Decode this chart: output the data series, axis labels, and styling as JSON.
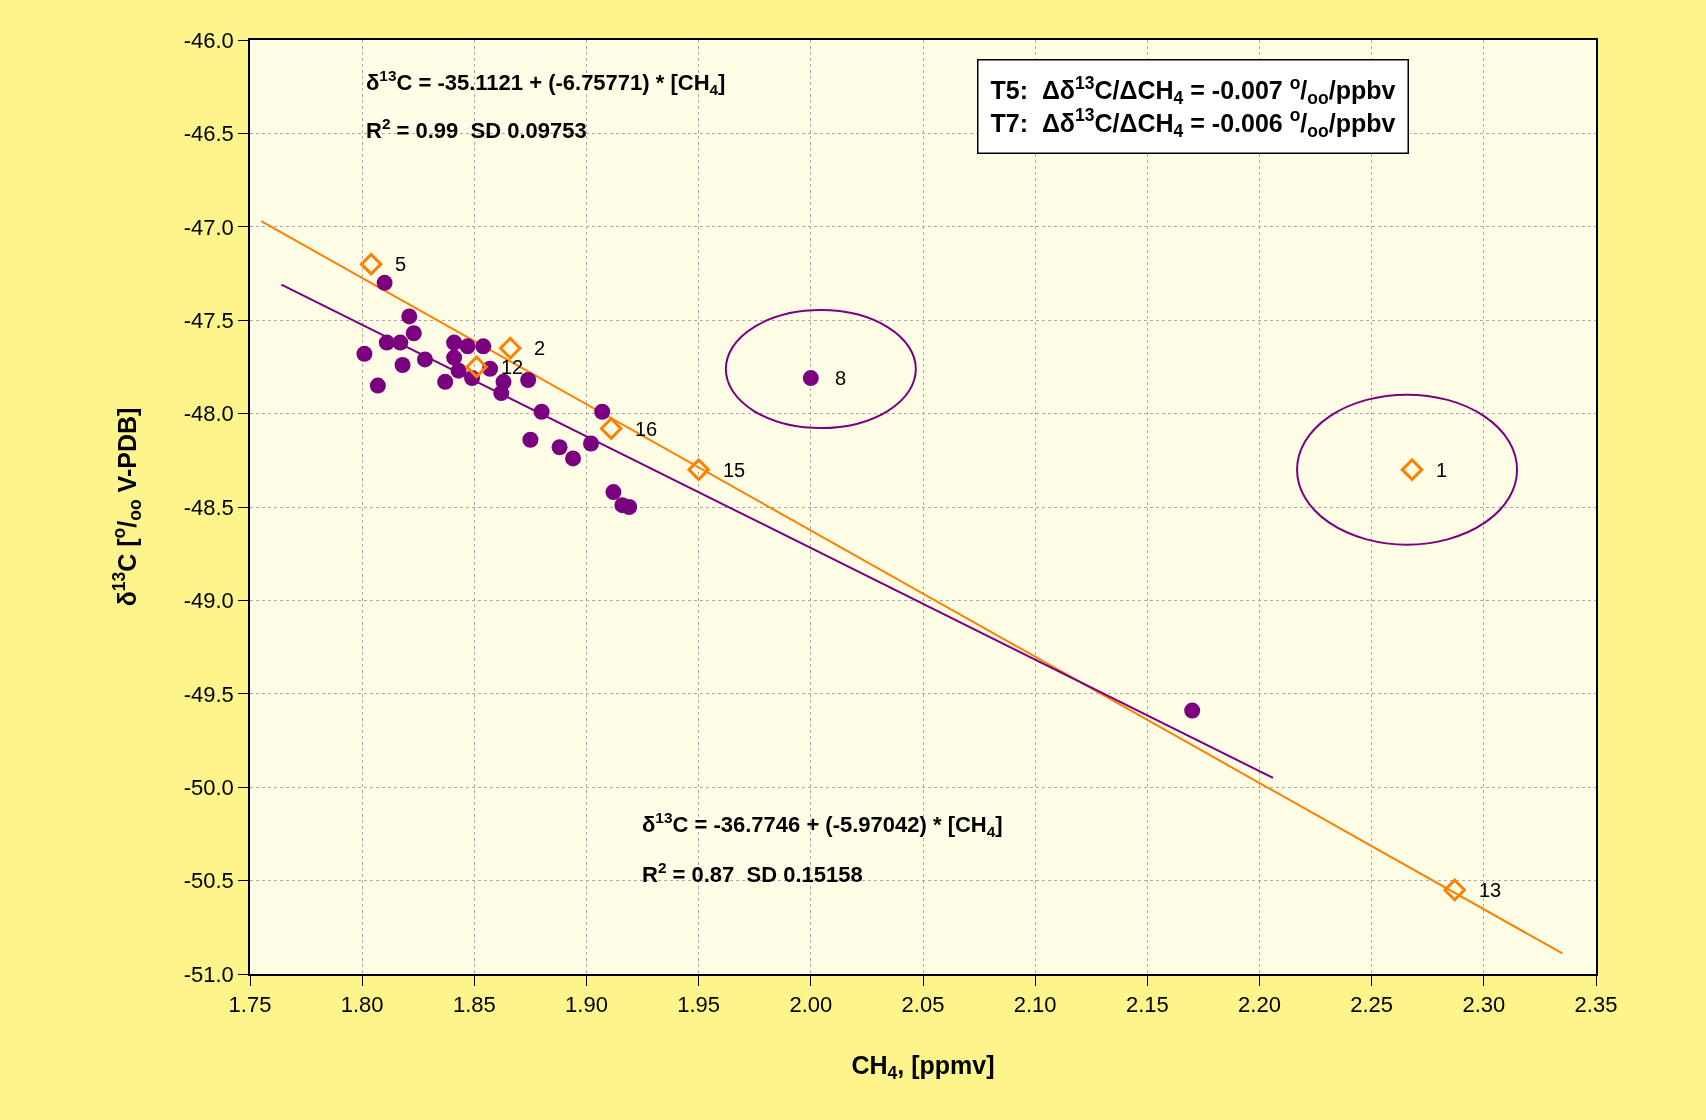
{
  "chart_data": {
    "type": "scatter",
    "xlabel": "CH$_{4}$, [ppmv]",
    "ylabel": "δ$^{13}$C [$^{o}$/$_{oo}$ V-PDB]",
    "xlim": [
      1.75,
      2.35
    ],
    "xticks": [
      {
        "value": 1.75,
        "label": "1.75"
      },
      {
        "value": 1.8,
        "label": "1.80"
      },
      {
        "value": 1.85,
        "label": "1.85"
      },
      {
        "value": 1.9,
        "label": "1.90"
      },
      {
        "value": 1.95,
        "label": "1.95"
      },
      {
        "value": 2.0,
        "label": "2.00"
      },
      {
        "value": 2.05,
        "label": "2.05"
      },
      {
        "value": 2.1,
        "label": "2.10"
      },
      {
        "value": 2.15,
        "label": "2.15"
      },
      {
        "value": 2.2,
        "label": "2.20"
      },
      {
        "value": 2.25,
        "label": "2.25"
      },
      {
        "value": 2.3,
        "label": "2.30"
      },
      {
        "value": 2.35,
        "label": "2.35"
      }
    ],
    "ylim": [
      -51,
      -46
    ],
    "yticks": [
      {
        "value": -46,
        "label": "-46.0"
      },
      {
        "value": -46.5,
        "label": "-46.5"
      },
      {
        "value": -47,
        "label": "-47.0"
      },
      {
        "value": -47.5,
        "label": "-47.5"
      },
      {
        "value": -48,
        "label": "-48.0"
      },
      {
        "value": -48.5,
        "label": "-48.5"
      },
      {
        "value": -49,
        "label": "-49.0"
      },
      {
        "value": -49.5,
        "label": "-49.5"
      },
      {
        "value": -50,
        "label": "-50.0"
      },
      {
        "value": -50.5,
        "label": "-50.5"
      },
      {
        "value": -51,
        "label": "-51.0"
      }
    ],
    "grid": true,
    "series": [
      {
        "type": "line",
        "color": "#ff8000",
        "x": [
          1.755,
          2.335
        ],
        "values": [
          -46.97,
          -50.89
        ]
      },
      {
        "type": "line",
        "color": "#7b0080",
        "x": [
          1.764,
          2.206
        ],
        "values": [
          -47.31,
          -49.95
        ]
      },
      {
        "marker": "circle",
        "color": "#7b0080",
        "x": [
          1.81,
          1.821,
          1.823,
          1.801,
          1.811,
          1.817,
          1.818,
          1.807,
          1.828,
          1.841,
          1.847,
          1.854,
          1.841,
          1.843,
          1.837,
          1.849,
          1.857,
          1.863,
          1.862,
          1.874,
          1.88,
          1.875,
          1.888,
          1.894,
          1.902,
          1.907,
          1.912,
          1.916,
          1.919,
          2.0,
          2.17
        ],
        "values": [
          -47.3,
          -47.48,
          -47.57,
          -47.68,
          -47.62,
          -47.62,
          -47.74,
          -47.85,
          -47.71,
          -47.62,
          -47.64,
          -47.64,
          -47.7,
          -47.77,
          -47.83,
          -47.81,
          -47.76,
          -47.83,
          -47.89,
          -47.82,
          -47.99,
          -48.14,
          -48.18,
          -48.24,
          -48.16,
          -47.99,
          -48.42,
          -48.49,
          -48.5,
          -47.81,
          -49.59
        ]
      },
      {
        "marker": "diamond-open",
        "color": "#ff8000",
        "x": [
          1.804,
          1.866,
          1.851,
          1.911,
          1.95,
          2.268,
          2.287
        ],
        "values": [
          -47.2,
          -47.65,
          -47.75,
          -48.08,
          -48.3,
          -48.3,
          -50.55
        ]
      }
    ],
    "annotations": [
      "δ$^{13}$C = -35.1121 + (-6.75771) * [CH$_{4}$]",
      "R$^{2}$ = 0.99  SD 0.09753",
      "δ$^{13}$C = -36.7746 + (-5.97042) * [CH$_{4}$]",
      "R$^{2}$ = 0.87  SD 0.15158",
      "T5:  Δδ$^{13}$C/ΔCH$_{4}$ = -0.007 $^{o}$/$_{oo}$/ppbv",
      "T7:  Δδ$^{13}$C/ΔCH$_{4}$ = -0.006 $^{o}$/$_{oo}$/ppbv",
      {
        "text": "5",
        "x": 1.804,
        "y": -47.2
      },
      {
        "text": "2",
        "x": 1.866,
        "y": -47.65
      },
      {
        "text": "12",
        "x": 1.851,
        "y": -47.75
      },
      {
        "text": "16",
        "x": 1.911,
        "y": -48.08
      },
      {
        "text": "15",
        "x": 1.95,
        "y": -48.3
      },
      {
        "text": "8",
        "x": 2.0,
        "y": -47.81
      },
      {
        "text": "1",
        "x": 2.268,
        "y": -48.3
      },
      {
        "text": "13",
        "x": 2.287,
        "y": -50.55
      }
    ]
  }
}
